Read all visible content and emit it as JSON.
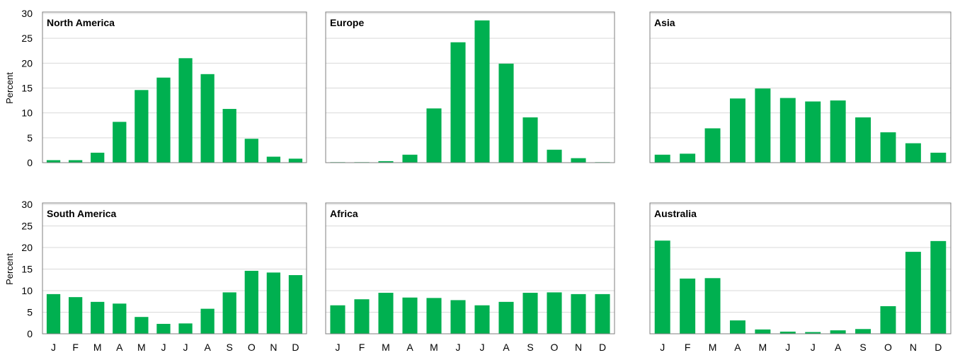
{
  "chart_data": {
    "type": "bar",
    "layout": "2x3 small multiples",
    "ylabel": "Percent",
    "ylim": [
      0,
      30
    ],
    "yticks": [
      0,
      5,
      10,
      15,
      20,
      25,
      30
    ],
    "categories": [
      "J",
      "F",
      "M",
      "A",
      "M",
      "J",
      "J",
      "A",
      "S",
      "O",
      "N",
      "D"
    ],
    "bar_color": "#00b050",
    "grid": true,
    "panels": [
      {
        "title": "North America",
        "values": [
          0.5,
          0.5,
          2.0,
          8.2,
          14.6,
          17.1,
          21.0,
          17.8,
          10.8,
          4.8,
          1.2,
          0.8
        ]
      },
      {
        "title": "Europe",
        "values": [
          0.1,
          0.1,
          0.3,
          1.6,
          10.9,
          24.2,
          28.6,
          19.9,
          9.1,
          2.6,
          0.9,
          0.1
        ]
      },
      {
        "title": "Asia",
        "values": [
          1.6,
          1.8,
          6.9,
          12.9,
          14.9,
          13.0,
          12.3,
          12.5,
          9.1,
          6.1,
          3.9,
          2.0
        ]
      },
      {
        "title": "South America",
        "values": [
          9.2,
          8.5,
          7.4,
          7.0,
          3.9,
          2.3,
          2.4,
          5.8,
          9.6,
          14.6,
          14.2,
          13.6
        ]
      },
      {
        "title": "Africa",
        "values": [
          6.6,
          8.0,
          9.5,
          8.4,
          8.3,
          7.8,
          6.6,
          7.4,
          9.5,
          9.6,
          9.2,
          9.2
        ]
      },
      {
        "title": "Australia",
        "values": [
          21.6,
          12.8,
          12.9,
          3.1,
          1.0,
          0.5,
          0.4,
          0.8,
          1.1,
          6.4,
          19.0,
          21.5
        ]
      }
    ]
  }
}
